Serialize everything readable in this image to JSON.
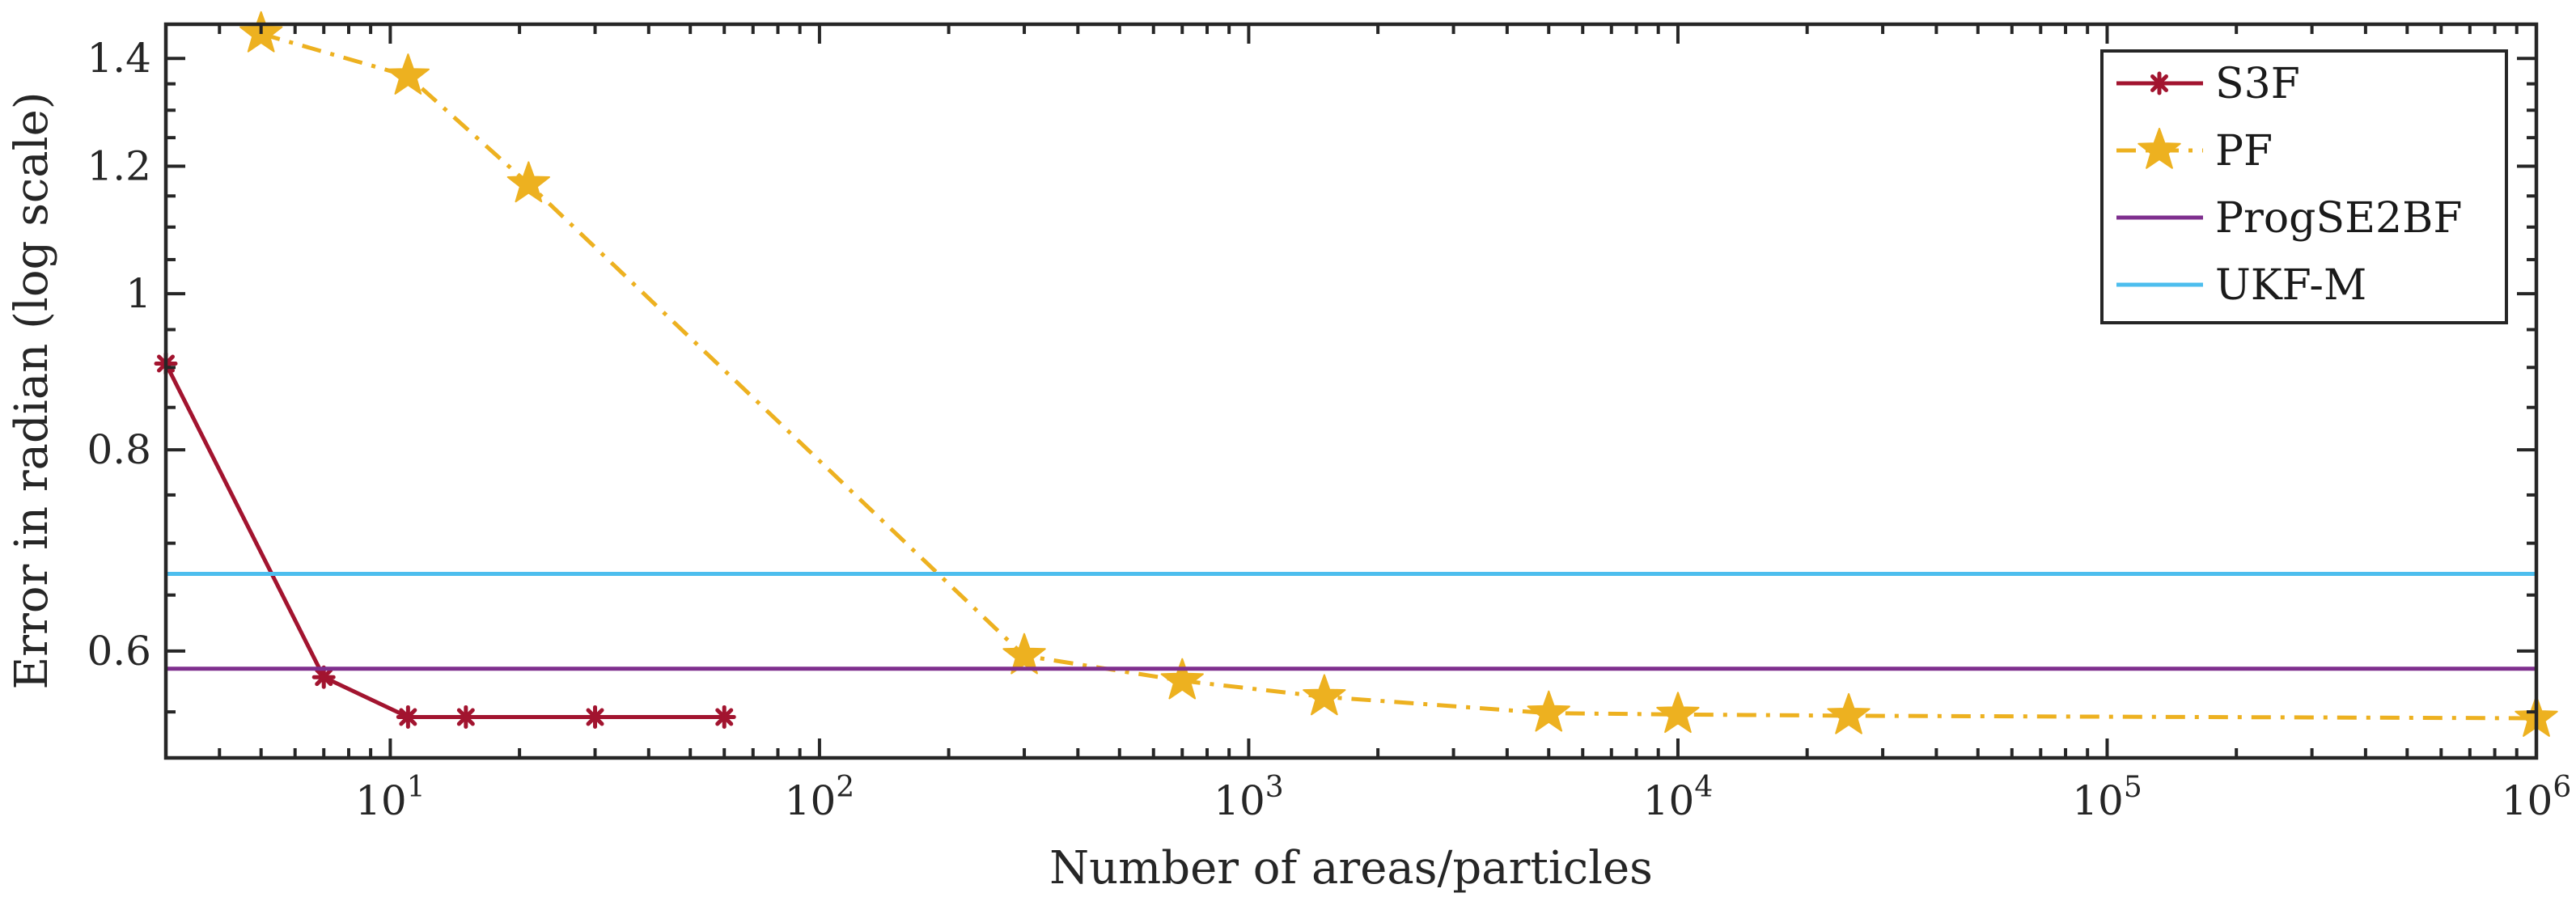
{
  "chart_data": {
    "type": "line",
    "xlabel": "Number of areas/particles",
    "ylabel": "Error in radian (log scale)",
    "xscale": "log",
    "yscale": "log",
    "xlim": [
      3,
      1000000
    ],
    "ylim": [
      0.515,
      1.47
    ],
    "x_ticks": [
      {
        "value": 10,
        "base": "10",
        "exp": "1"
      },
      {
        "value": 100,
        "base": "10",
        "exp": "2"
      },
      {
        "value": 1000,
        "base": "10",
        "exp": "3"
      },
      {
        "value": 10000,
        "base": "10",
        "exp": "4"
      },
      {
        "value": 100000,
        "base": "10",
        "exp": "5"
      },
      {
        "value": 1000000,
        "base": "10",
        "exp": "6"
      }
    ],
    "y_ticks": [
      {
        "value": 0.6,
        "label": "0.6"
      },
      {
        "value": 0.8,
        "label": "0.8"
      },
      {
        "value": 1.0,
        "label": "1"
      },
      {
        "value": 1.2,
        "label": "1.2"
      },
      {
        "value": 1.4,
        "label": "1.4"
      }
    ],
    "legend_position": "top-right",
    "series": [
      {
        "name": "S3F",
        "color": "#a2142f",
        "dash": "solid",
        "marker": "asterisk",
        "x": [
          3,
          7,
          11,
          15,
          30,
          60
        ],
        "y": [
          0.905,
          0.578,
          0.546,
          0.546,
          0.546,
          0.546
        ]
      },
      {
        "name": "PF",
        "color": "#edb120",
        "dash": "dashdot",
        "marker": "star",
        "x": [
          5,
          11,
          21,
          300,
          700,
          1500,
          5000,
          10000,
          25000,
          1000000
        ],
        "y": [
          1.45,
          1.365,
          1.17,
          0.596,
          0.575,
          0.562,
          0.549,
          0.548,
          0.547,
          0.545
        ]
      },
      {
        "name": "ProgSE2BF",
        "color": "#7e2f8e",
        "dash": "solid",
        "marker": "none",
        "x": [
          3,
          1000000
        ],
        "y": [
          0.585,
          0.585
        ]
      },
      {
        "name": "UKF-M",
        "color": "#4dbeee",
        "dash": "solid",
        "marker": "none",
        "x": [
          3,
          1000000
        ],
        "y": [
          0.67,
          0.67
        ]
      }
    ]
  }
}
